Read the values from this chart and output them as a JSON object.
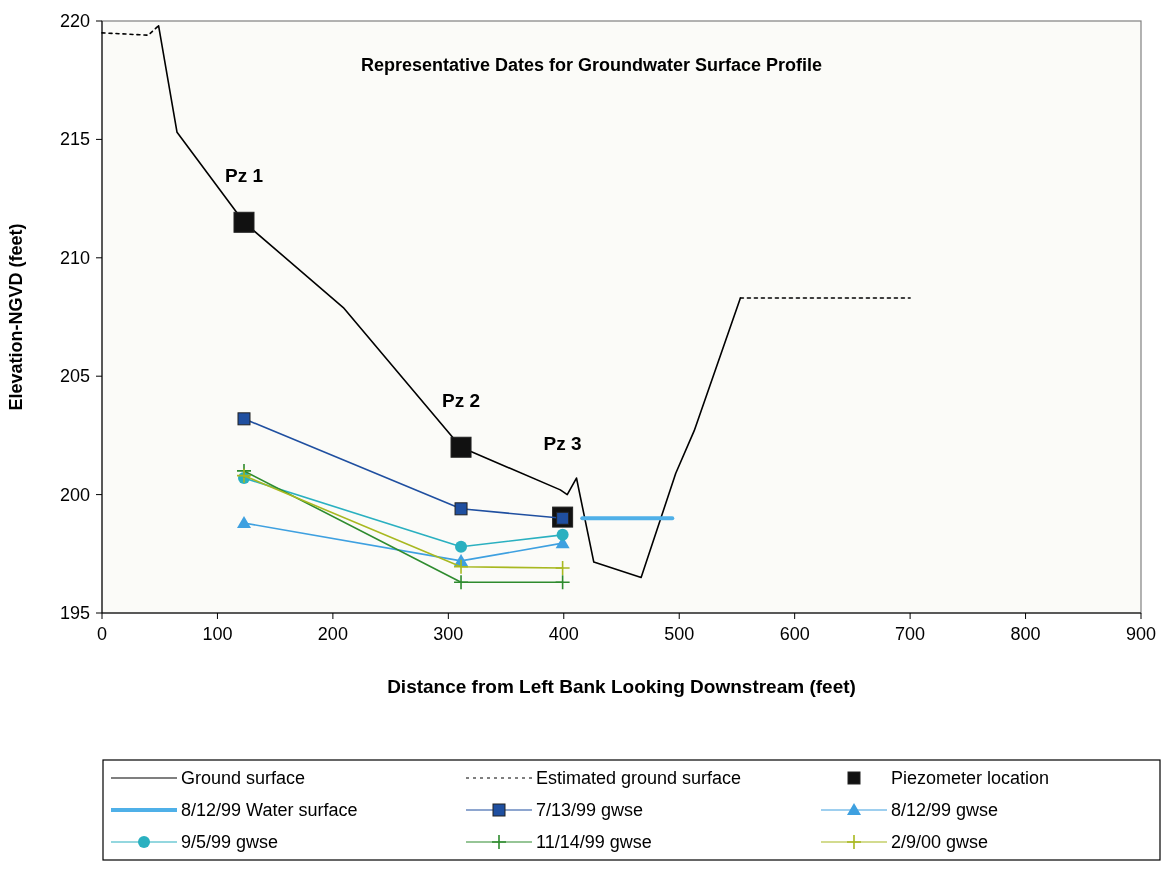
{
  "chart_data": {
    "type": "line",
    "title": "Representative Dates for Groundwater Surface Profile",
    "xlabel": "Distance from Left Bank Looking Downstream (feet)",
    "ylabel": "Elevation-NGVD (feet)",
    "xlim": [
      0,
      900
    ],
    "xticks": [
      0,
      100,
      200,
      300,
      400,
      500,
      600,
      700,
      800,
      900
    ],
    "ylim": [
      195,
      220
    ],
    "yticks": [
      195,
      200,
      205,
      210,
      215,
      220
    ],
    "grid": false,
    "legend": "bottom",
    "annotations": [
      {
        "text": "Pz 1",
        "x": 123,
        "y": 211.5
      },
      {
        "text": "Pz 2",
        "x": 311,
        "y": 202
      },
      {
        "text": "Pz 3",
        "x": 399,
        "y": 200.2
      }
    ],
    "series": [
      {
        "name": "Ground surface",
        "color": "#000000",
        "marker": "none",
        "line_style": "solid",
        "x": [
          49,
          65,
          123,
          209,
          311,
          397,
          403,
          411,
          426,
          467,
          497,
          513,
          553
        ],
        "values": [
          219.8,
          215.3,
          211.5,
          207.9,
          202,
          200.2,
          200,
          200.7,
          197.15,
          196.5,
          200.9,
          202.7,
          208.3
        ]
      },
      {
        "name": "Estimated ground surface",
        "color": "#000000",
        "marker": "none",
        "line_style": "dashed",
        "x": [
          0,
          40,
          49,
          300,
          553,
          700
        ],
        "values": [
          219.5,
          219.4,
          219.8,
          null,
          208.3,
          208.3
        ]
      },
      {
        "name": "Piezometer location",
        "type": "scatter",
        "color": "#111111",
        "marker": "square",
        "x": [
          123,
          311,
          399
        ],
        "values": [
          211.5,
          202,
          199.05
        ]
      },
      {
        "name": "8/12/99 Water surface",
        "color": "#4fb0e8",
        "marker": "none",
        "line_style": "solid",
        "x": [
          416,
          494
        ],
        "values": [
          199,
          199
        ]
      },
      {
        "name": "7/13/99 gwse",
        "color": "#1f4fa0",
        "marker": "square",
        "line_style": "solid",
        "x": [
          123,
          311,
          399
        ],
        "values": [
          203.2,
          199.4,
          199
        ]
      },
      {
        "name": "8/12/99 gwse",
        "color": "#3ea0e0",
        "marker": "triangle",
        "line_style": "solid",
        "x": [
          123,
          311,
          399
        ],
        "values": [
          198.8,
          197.2,
          197.95
        ]
      },
      {
        "name": "9/5/99 gwse",
        "color": "#2ab0c0",
        "marker": "circle",
        "line_style": "solid",
        "x": [
          123,
          311,
          399
        ],
        "values": [
          200.7,
          197.8,
          198.3
        ]
      },
      {
        "name": "11/14/99 gwse",
        "color": "#2e8b2e",
        "marker": "cross",
        "line_style": "solid",
        "x": [
          123,
          311,
          399
        ],
        "values": [
          201,
          196.3,
          196.3
        ]
      },
      {
        "name": "2/9/00 gwse",
        "color": "#a8b820",
        "marker": "cross",
        "line_style": "solid",
        "x": [
          123,
          311,
          399
        ],
        "values": [
          200.8,
          196.95,
          196.9
        ]
      }
    ]
  }
}
